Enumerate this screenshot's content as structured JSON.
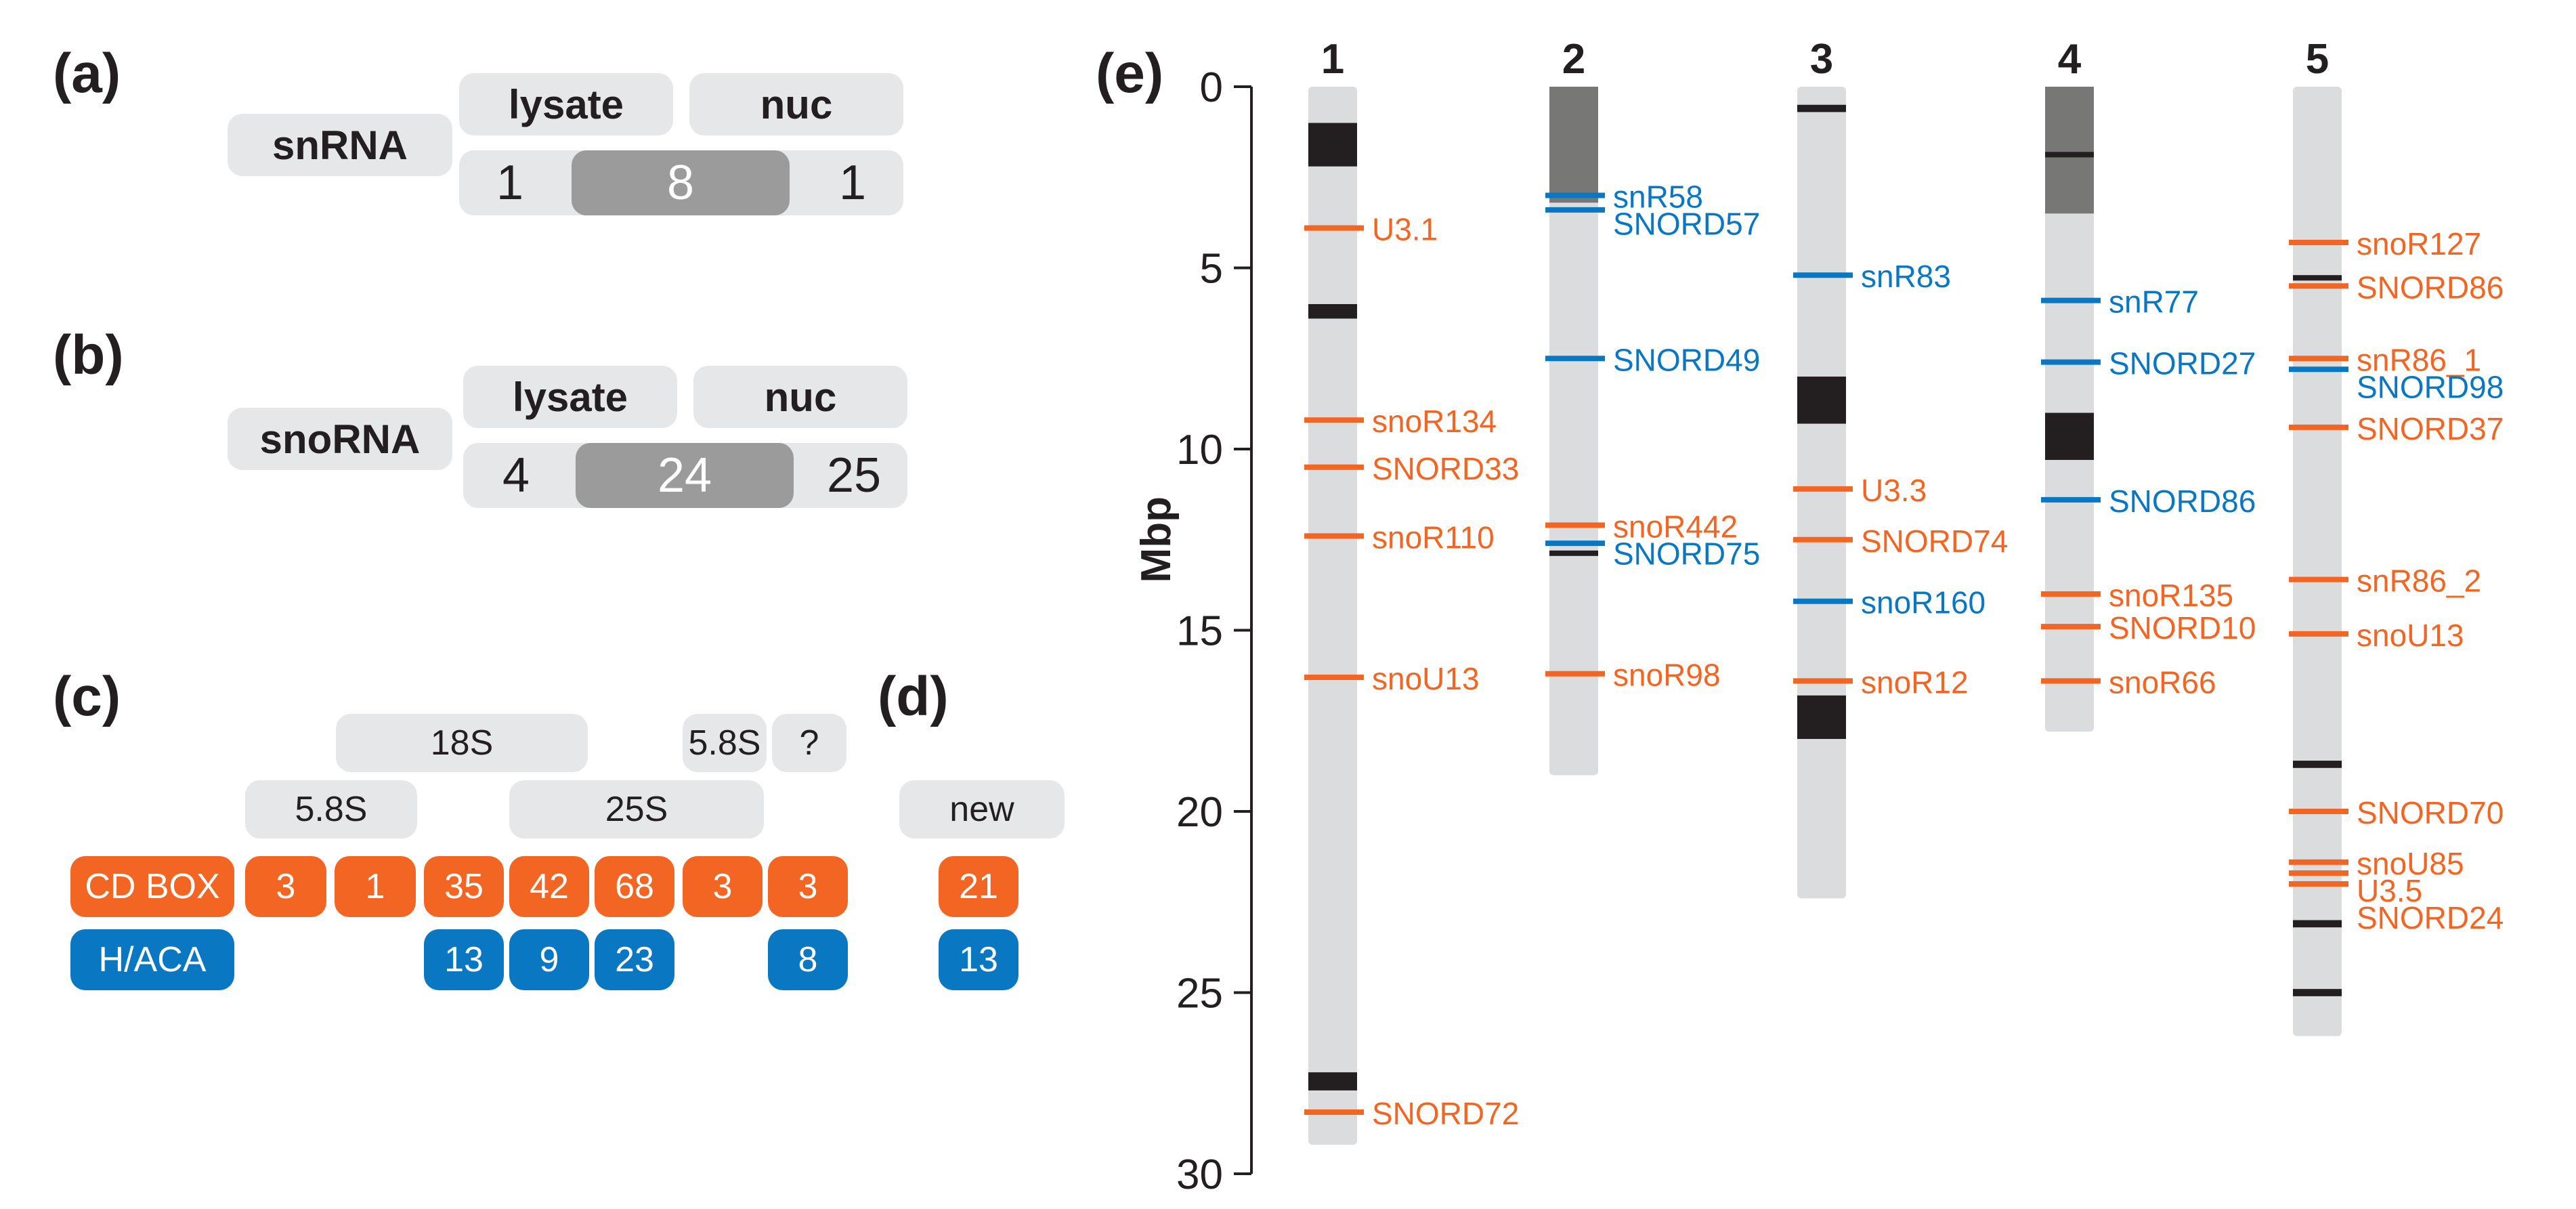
{
  "colors": {
    "cdbox": "#f26522",
    "haca": "#0a77c2",
    "light_box": "#e6e7e8",
    "mid_box": "#9b9b9b",
    "chromosome": "#dadcdd",
    "band_dark": "#231f20",
    "band_grey": "#777775",
    "text": "#231f20"
  },
  "panel_a": {
    "label": "(a)",
    "category": "snRNA",
    "col_lysate": "lysate",
    "col_nuc": "nuc",
    "lysate_only": "1",
    "both": "8",
    "nuc_only": "1"
  },
  "panel_b": {
    "label": "(b)",
    "category": "snoRNA",
    "col_lysate": "lysate",
    "col_nuc": "nuc",
    "lysate_only": "4",
    "both": "24",
    "nuc_only": "25"
  },
  "panel_c": {
    "label": "(c)",
    "region_18s": "18S",
    "region_58s_top": "5.8S",
    "region_unknown": "?",
    "region_58s_bottom": "5.8S",
    "region_25s": "25S",
    "row_cd_label": "CD BOX",
    "row_haca_label": "H/ACA",
    "cd_counts": [
      "3",
      "1",
      "35",
      "42",
      "68",
      "3",
      "3"
    ],
    "haca_counts": [
      "13",
      "9",
      "23",
      "8"
    ]
  },
  "panel_d": {
    "label": "(d)",
    "header": "new",
    "cd_count": "21",
    "haca_count": "13"
  },
  "panel_e": {
    "label": "(e)",
    "axis_label": "Mbp",
    "ticks": [
      "0",
      "5",
      "10",
      "15",
      "20",
      "25",
      "30"
    ]
  },
  "chart_data": {
    "type": "ideogram",
    "title": "(e)",
    "ylabel": "Mbp",
    "ylim": [
      0,
      30
    ],
    "chromosomes": [
      {
        "name": "1",
        "length": 29.2,
        "dark_bands": [
          [
            1.0,
            2.2
          ],
          [
            6.0,
            6.4
          ],
          [
            27.2,
            27.7
          ]
        ],
        "grey_bands": [],
        "genes": [
          {
            "name": "U3.1",
            "pos": 3.9,
            "type": "cd"
          },
          {
            "name": "snoR134",
            "pos": 9.2,
            "type": "cd"
          },
          {
            "name": "SNORD33",
            "pos": 10.5,
            "type": "cd"
          },
          {
            "name": "snoR110",
            "pos": 12.4,
            "type": "cd"
          },
          {
            "name": "snoU13",
            "pos": 16.3,
            "type": "cd"
          },
          {
            "name": "SNORD72",
            "pos": 28.3,
            "type": "cd"
          }
        ]
      },
      {
        "name": "2",
        "length": 19.0,
        "dark_bands": [
          [
            12.8,
            12.9
          ]
        ],
        "grey_bands": [
          [
            0.0,
            3.2
          ]
        ],
        "genes": [
          {
            "name": "snR58",
            "pos": 3.0,
            "type": "haca"
          },
          {
            "name": "SNORD57",
            "pos": 3.4,
            "type": "haca"
          },
          {
            "name": "SNORD49",
            "pos": 7.5,
            "type": "haca"
          },
          {
            "name": "snoR442",
            "pos": 12.1,
            "type": "cd"
          },
          {
            "name": "SNORD75",
            "pos": 12.6,
            "type": "haca"
          },
          {
            "name": "snoR98",
            "pos": 16.2,
            "type": "cd"
          }
        ]
      },
      {
        "name": "3",
        "length": 22.4,
        "dark_bands": [
          [
            0.5,
            0.7
          ],
          [
            8.0,
            9.3
          ],
          [
            16.8,
            18.0
          ]
        ],
        "grey_bands": [],
        "genes": [
          {
            "name": "snR83",
            "pos": 5.2,
            "type": "haca"
          },
          {
            "name": "U3.3",
            "pos": 11.1,
            "type": "cd"
          },
          {
            "name": "SNORD74",
            "pos": 12.5,
            "type": "cd"
          },
          {
            "name": "snoR160",
            "pos": 14.2,
            "type": "haca"
          },
          {
            "name": "snoR12",
            "pos": 16.4,
            "type": "cd"
          }
        ]
      },
      {
        "name": "4",
        "length": 17.8,
        "dark_bands": [
          [
            1.8,
            1.95
          ],
          [
            9.0,
            10.3
          ]
        ],
        "grey_bands": [
          [
            0.0,
            3.5
          ]
        ],
        "genes": [
          {
            "name": "snR77",
            "pos": 5.9,
            "type": "haca"
          },
          {
            "name": "SNORD27",
            "pos": 7.6,
            "type": "haca"
          },
          {
            "name": "SNORD86",
            "pos": 11.4,
            "type": "haca"
          },
          {
            "name": "snoR135",
            "pos": 14.0,
            "type": "cd"
          },
          {
            "name": "SNORD10",
            "pos": 14.9,
            "type": "cd"
          },
          {
            "name": "snoR66",
            "pos": 16.4,
            "type": "cd"
          }
        ]
      },
      {
        "name": "5",
        "length": 26.2,
        "dark_bands": [
          [
            5.2,
            5.35
          ],
          [
            18.6,
            18.8
          ],
          [
            23.0,
            23.2
          ],
          [
            24.9,
            25.1
          ]
        ],
        "grey_bands": [],
        "genes": [
          {
            "name": "snoR127",
            "pos": 4.3,
            "type": "cd"
          },
          {
            "name": "SNORD86",
            "pos": 5.5,
            "type": "cd"
          },
          {
            "name": "snR86_1",
            "pos": 7.5,
            "type": "cd"
          },
          {
            "name": "SNORD98",
            "pos": 7.8,
            "type": "haca"
          },
          {
            "name": "SNORD37",
            "pos": 9.4,
            "type": "cd"
          },
          {
            "name": "snR86_2",
            "pos": 13.6,
            "type": "cd"
          },
          {
            "name": "snoU13",
            "pos": 15.1,
            "type": "cd"
          },
          {
            "name": "SNORD70",
            "pos": 20.0,
            "type": "cd"
          },
          {
            "name": "snoU85",
            "pos": 21.4,
            "type": "cd"
          },
          {
            "name": "U3.5",
            "pos": 21.7,
            "type": "cd"
          },
          {
            "name": "SNORD24",
            "pos": 22.0,
            "type": "cd"
          }
        ]
      }
    ]
  }
}
